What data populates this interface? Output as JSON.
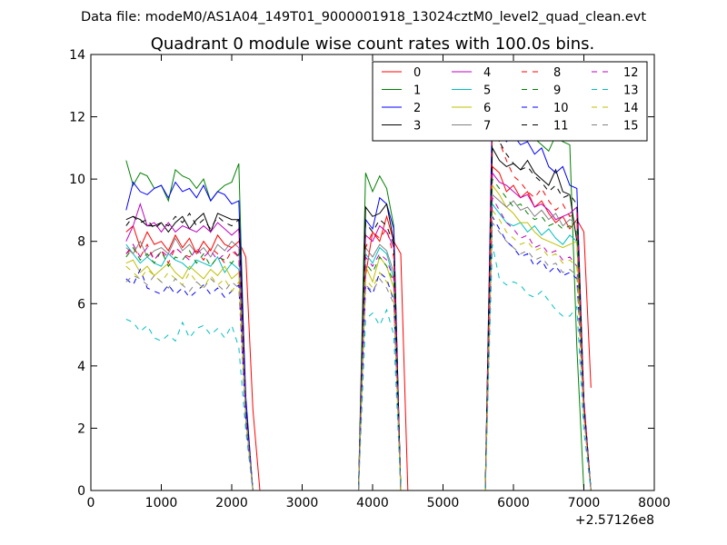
{
  "header": {
    "file_label": "Data file: modeM0/AS1A04_149T01_9000001918_13024cztM0_level2_quad_clean.evt"
  },
  "chart_data": {
    "type": "line",
    "title": "Quadrant 0 module wise count rates with 100.0s bins.",
    "xlabel": "",
    "ylabel": "",
    "x_offset_label": "+2.57126e8",
    "xlim": [
      0,
      8000
    ],
    "ylim": [
      0,
      14
    ],
    "xticks": [
      0,
      1000,
      2000,
      3000,
      4000,
      5000,
      6000,
      7000,
      8000
    ],
    "yticks": [
      0,
      2,
      4,
      6,
      8,
      10,
      12,
      14
    ],
    "grid": false,
    "legend": {
      "placement": "top-right",
      "columns": 4
    },
    "x": [
      500,
      600,
      700,
      800,
      900,
      1000,
      1100,
      1200,
      1300,
      1400,
      1500,
      1600,
      1700,
      1800,
      1900,
      2000,
      2100,
      2200,
      2300,
      2400,
      2500,
      2600,
      2700,
      2800,
      2900,
      3000,
      3100,
      3200,
      3300,
      3400,
      3500,
      3600,
      3700,
      3800,
      3900,
      4000,
      4100,
      4200,
      4300,
      4400,
      4500,
      4600,
      4700,
      4800,
      4900,
      5000,
      5100,
      5200,
      5300,
      5400,
      5500,
      5600,
      5700,
      5800,
      5900,
      6000,
      6100,
      6200,
      6300,
      6400,
      6500,
      6600,
      6700,
      6800,
      6900,
      7000,
      7100
    ],
    "series": [
      {
        "name": "0",
        "color": "#ff0000",
        "dash": "solid",
        "values": [
          8.3,
          8.5,
          7.8,
          8.3,
          7.9,
          8.0,
          7.7,
          8.2,
          7.8,
          8.1,
          7.6,
          8.0,
          7.7,
          8.2,
          7.9,
          7.8,
          8.0,
          7.5,
          2.6,
          0,
          0,
          0,
          0,
          0,
          0,
          0,
          0,
          0,
          0,
          0,
          0,
          0,
          0,
          0,
          6.9,
          8.3,
          8.0,
          8.8,
          8.0,
          7.6,
          0,
          0,
          0,
          0,
          0,
          0,
          0,
          0,
          0,
          0,
          0,
          0,
          10.4,
          10.2,
          9.6,
          9.8,
          9.4,
          9.6,
          9.1,
          9.3,
          8.9,
          8.6,
          8.8,
          8.4,
          8.7,
          8.3,
          3.3
        ]
      },
      {
        "name": "1",
        "color": "#008000",
        "dash": "solid",
        "values": [
          10.6,
          9.8,
          10.2,
          10.1,
          9.7,
          9.8,
          9.3,
          10.3,
          10.1,
          10.0,
          9.7,
          10.0,
          9.3,
          9.6,
          9.8,
          9.9,
          10.5,
          2.4,
          0,
          0,
          0,
          0,
          0,
          0,
          0,
          0,
          0,
          0,
          0,
          0,
          0,
          0,
          0,
          0,
          10.2,
          9.6,
          10.1,
          9.7,
          8.5,
          0,
          0,
          0,
          0,
          0,
          0,
          0,
          0,
          0,
          0,
          0,
          0,
          0,
          11.6,
          11.9,
          11.7,
          11.6,
          11.5,
          11.5,
          11.3,
          11.1,
          10.9,
          11.4,
          11.2,
          11.1,
          4.6,
          0,
          0
        ]
      },
      {
        "name": "2",
        "color": "#0000ff",
        "dash": "solid",
        "values": [
          9.0,
          9.9,
          9.6,
          9.5,
          9.7,
          9.8,
          9.4,
          9.9,
          9.6,
          9.7,
          9.4,
          9.8,
          9.3,
          9.6,
          9.5,
          9.2,
          9.3,
          3.0,
          0,
          0,
          0,
          0,
          0,
          0,
          0,
          0,
          0,
          0,
          0,
          0,
          0,
          0,
          0,
          0,
          8.7,
          8.4,
          9.4,
          9.2,
          8.4,
          0,
          0,
          0,
          0,
          0,
          0,
          0,
          0,
          0,
          0,
          0,
          0,
          0,
          12.4,
          11.6,
          11.2,
          11.4,
          11.1,
          11.2,
          10.8,
          11.0,
          10.4,
          10.2,
          10.4,
          9.8,
          9.7,
          2.9,
          0
        ]
      },
      {
        "name": "3",
        "color": "#000000",
        "dash": "solid",
        "values": [
          8.7,
          8.8,
          8.7,
          8.5,
          8.5,
          8.6,
          8.3,
          8.6,
          8.8,
          8.4,
          8.7,
          8.9,
          8.3,
          8.9,
          8.8,
          8.7,
          8.7,
          2.6,
          0,
          0,
          0,
          0,
          0,
          0,
          0,
          0,
          0,
          0,
          0,
          0,
          0,
          0,
          0,
          0,
          9.1,
          8.8,
          8.9,
          9.2,
          8.0,
          0,
          0,
          0,
          0,
          0,
          0,
          0,
          0,
          0,
          0,
          0,
          0,
          0,
          11.0,
          10.6,
          10.4,
          10.5,
          10.3,
          10.6,
          10.2,
          10.0,
          9.8,
          10.3,
          9.6,
          9.5,
          8.0,
          2.8,
          0
        ]
      },
      {
        "name": "4",
        "color": "#bf00bf",
        "dash": "solid",
        "values": [
          8.0,
          8.5,
          9.2,
          8.5,
          8.6,
          8.3,
          8.6,
          8.3,
          8.5,
          8.4,
          8.3,
          8.5,
          8.3,
          8.6,
          8.4,
          8.2,
          8.4,
          2.5,
          0,
          0,
          0,
          0,
          0,
          0,
          0,
          0,
          0,
          0,
          0,
          0,
          0,
          0,
          0,
          0,
          8.2,
          8.0,
          8.5,
          8.3,
          7.8,
          0,
          0,
          0,
          0,
          0,
          0,
          0,
          0,
          0,
          0,
          0,
          0,
          0,
          10.2,
          9.9,
          9.8,
          9.6,
          9.4,
          9.5,
          9.1,
          9.2,
          9.0,
          8.7,
          8.8,
          8.9,
          9.1,
          2.8,
          0
        ]
      },
      {
        "name": "5",
        "color": "#00bfbf",
        "dash": "solid",
        "values": [
          7.9,
          7.6,
          7.3,
          7.5,
          7.3,
          7.2,
          7.6,
          7.4,
          7.3,
          7.1,
          7.4,
          7.3,
          7.2,
          7.5,
          7.0,
          7.3,
          7.1,
          2.4,
          0,
          0,
          0,
          0,
          0,
          0,
          0,
          0,
          0,
          0,
          0,
          0,
          0,
          0,
          0,
          0,
          7.6,
          7.3,
          7.8,
          7.6,
          6.8,
          0,
          0,
          0,
          0,
          0,
          0,
          0,
          0,
          0,
          0,
          0,
          0,
          0,
          9.2,
          8.9,
          8.6,
          8.5,
          8.6,
          8.3,
          8.5,
          8.2,
          8.4,
          8.1,
          7.9,
          8.2,
          8.0,
          2.6,
          0
        ]
      },
      {
        "name": "6",
        "color": "#bfbf00",
        "dash": "solid",
        "values": [
          7.3,
          7.4,
          7.0,
          7.2,
          6.9,
          7.1,
          7.3,
          7.0,
          6.8,
          7.2,
          7.0,
          6.8,
          7.1,
          6.9,
          7.2,
          6.8,
          7.0,
          2.3,
          0,
          0,
          0,
          0,
          0,
          0,
          0,
          0,
          0,
          0,
          0,
          0,
          0,
          0,
          0,
          0,
          7.2,
          6.7,
          7.5,
          7.2,
          6.5,
          0,
          0,
          0,
          0,
          0,
          0,
          0,
          0,
          0,
          0,
          0,
          0,
          0,
          9.8,
          9.5,
          9.1,
          8.9,
          8.6,
          8.6,
          8.3,
          8.1,
          8.0,
          7.9,
          7.8,
          7.9,
          8.0,
          2.5,
          0
        ]
      },
      {
        "name": "7",
        "color": "#808080",
        "dash": "solid",
        "values": [
          7.8,
          7.6,
          8.0,
          7.5,
          7.7,
          7.8,
          7.6,
          8.1,
          7.7,
          7.9,
          7.6,
          7.8,
          7.5,
          7.9,
          7.7,
          8.0,
          7.8,
          2.5,
          0,
          0,
          0,
          0,
          0,
          0,
          0,
          0,
          0,
          0,
          0,
          0,
          0,
          0,
          0,
          0,
          7.8,
          7.5,
          7.9,
          7.7,
          7.0,
          0,
          0,
          0,
          0,
          0,
          0,
          0,
          0,
          0,
          0,
          0,
          0,
          0,
          9.5,
          9.3,
          9.1,
          9.3,
          9.0,
          9.1,
          8.8,
          9.0,
          8.7,
          8.9,
          8.5,
          8.7,
          8.6,
          2.6,
          0
        ]
      },
      {
        "name": "8",
        "color": "#ff0000",
        "dash": "dashed",
        "values": [
          7.6,
          7.8,
          7.5,
          7.9,
          7.4,
          7.7,
          7.3,
          7.8,
          7.6,
          7.5,
          7.7,
          7.4,
          7.8,
          7.6,
          7.3,
          7.7,
          7.5,
          2.4,
          0,
          0,
          0,
          0,
          0,
          0,
          0,
          0,
          0,
          0,
          0,
          0,
          0,
          0,
          0,
          0,
          7.8,
          8.3,
          8.1,
          8.4,
          7.5,
          0,
          0,
          0,
          0,
          0,
          0,
          0,
          0,
          0,
          0,
          0,
          0,
          0,
          11.7,
          11.2,
          10.6,
          10.1,
          9.9,
          9.6,
          9.4,
          9.7,
          9.3,
          9.0,
          9.2,
          8.8,
          8.9,
          2.8,
          0
        ]
      },
      {
        "name": "9",
        "color": "#008000",
        "dash": "dashed",
        "values": [
          7.5,
          7.8,
          7.4,
          7.6,
          7.3,
          7.7,
          7.2,
          7.5,
          7.4,
          7.7,
          7.3,
          7.6,
          7.2,
          7.5,
          7.4,
          7.3,
          7.6,
          2.4,
          0,
          0,
          0,
          0,
          0,
          0,
          0,
          0,
          0,
          0,
          0,
          0,
          0,
          0,
          0,
          0,
          7.3,
          7.0,
          7.5,
          7.2,
          6.7,
          0,
          0,
          0,
          0,
          0,
          0,
          0,
          0,
          0,
          0,
          0,
          0,
          0,
          10.0,
          9.7,
          9.4,
          9.1,
          9.2,
          8.9,
          8.7,
          8.8,
          8.5,
          8.6,
          8.4,
          8.5,
          8.3,
          2.6,
          0
        ]
      },
      {
        "name": "10",
        "color": "#0000ff",
        "dash": "dashed",
        "values": [
          6.8,
          6.6,
          7.1,
          6.5,
          6.4,
          6.3,
          6.6,
          6.3,
          6.5,
          6.2,
          6.4,
          6.6,
          6.3,
          6.5,
          6.2,
          6.4,
          6.6,
          2.2,
          0,
          0,
          0,
          0,
          0,
          0,
          0,
          0,
          0,
          0,
          0,
          0,
          0,
          0,
          0,
          0,
          6.6,
          6.3,
          7.0,
          6.8,
          6.1,
          0,
          0,
          0,
          0,
          0,
          0,
          0,
          0,
          0,
          0,
          0,
          0,
          0,
          8.8,
          8.4,
          8.0,
          7.8,
          7.5,
          7.6,
          7.2,
          7.4,
          7.0,
          7.2,
          6.9,
          7.0,
          6.8,
          2.4,
          0
        ]
      },
      {
        "name": "11",
        "color": "#000000",
        "dash": "dashed",
        "values": [
          8.5,
          8.8,
          8.6,
          8.7,
          8.4,
          8.6,
          8.5,
          8.8,
          8.6,
          8.9,
          8.5,
          8.7,
          8.4,
          8.8,
          8.6,
          8.5,
          8.7,
          2.6,
          0,
          0,
          0,
          0,
          0,
          0,
          0,
          0,
          0,
          0,
          0,
          0,
          0,
          0,
          0,
          0,
          8.6,
          8.3,
          8.7,
          8.5,
          7.9,
          0,
          0,
          0,
          0,
          0,
          0,
          0,
          0,
          0,
          0,
          0,
          0,
          0,
          11.5,
          11.2,
          10.8,
          10.5,
          10.3,
          10.4,
          10.1,
          9.9,
          9.6,
          9.8,
          9.4,
          9.5,
          9.2,
          2.8,
          0
        ]
      },
      {
        "name": "12",
        "color": "#bf00bf",
        "dash": "dashed",
        "values": [
          7.6,
          7.9,
          7.5,
          7.8,
          7.4,
          7.7,
          7.5,
          7.8,
          7.6,
          7.4,
          7.8,
          7.5,
          7.7,
          7.4,
          7.6,
          7.8,
          7.5,
          2.4,
          0,
          0,
          0,
          0,
          0,
          0,
          0,
          0,
          0,
          0,
          0,
          0,
          0,
          0,
          0,
          0,
          7.5,
          7.2,
          7.6,
          7.4,
          6.8,
          0,
          0,
          0,
          0,
          0,
          0,
          0,
          0,
          0,
          0,
          0,
          0,
          0,
          9.4,
          9.0,
          8.6,
          8.4,
          8.1,
          8.2,
          7.8,
          7.9,
          7.6,
          7.7,
          7.4,
          7.5,
          7.2,
          2.5,
          0
        ]
      },
      {
        "name": "13",
        "color": "#00bfbf",
        "dash": "dashed",
        "values": [
          5.5,
          5.4,
          5.1,
          5.3,
          4.9,
          4.8,
          5.0,
          4.8,
          5.4,
          4.9,
          5.2,
          5.3,
          5.0,
          5.2,
          4.9,
          5.3,
          4.6,
          1.9,
          0,
          0,
          0,
          0,
          0,
          0,
          0,
          0,
          0,
          0,
          0,
          0,
          0,
          0,
          0,
          0,
          5.5,
          5.7,
          5.3,
          5.8,
          5.0,
          0,
          0,
          0,
          0,
          0,
          0,
          0,
          0,
          0,
          0,
          0,
          0,
          0,
          7.9,
          6.8,
          6.6,
          6.7,
          6.6,
          6.3,
          6.2,
          6.4,
          6.1,
          5.8,
          5.6,
          5.6,
          5.9,
          1.9,
          0
        ]
      },
      {
        "name": "14",
        "color": "#bfbf00",
        "dash": "dashed",
        "values": [
          7.2,
          7.0,
          6.8,
          7.1,
          6.9,
          6.7,
          7.0,
          6.8,
          6.6,
          7.0,
          6.7,
          6.5,
          6.9,
          6.6,
          6.8,
          6.4,
          6.7,
          2.2,
          0,
          0,
          0,
          0,
          0,
          0,
          0,
          0,
          0,
          0,
          0,
          0,
          0,
          0,
          0,
          0,
          6.8,
          6.5,
          7.0,
          6.7,
          6.2,
          0,
          0,
          0,
          0,
          0,
          0,
          0,
          0,
          0,
          0,
          0,
          0,
          0,
          9.0,
          8.7,
          8.3,
          8.1,
          7.9,
          8.0,
          7.7,
          7.8,
          7.5,
          7.6,
          7.3,
          7.4,
          7.2,
          2.4,
          0
        ]
      },
      {
        "name": "15",
        "color": "#808080",
        "dash": "dashed",
        "values": [
          6.7,
          6.9,
          6.8,
          6.6,
          6.9,
          6.7,
          6.5,
          6.8,
          6.6,
          6.4,
          6.7,
          6.5,
          6.8,
          6.6,
          6.4,
          6.7,
          6.5,
          2.2,
          0,
          0,
          0,
          0,
          0,
          0,
          0,
          0,
          0,
          0,
          0,
          0,
          0,
          0,
          0,
          0,
          6.6,
          6.4,
          6.8,
          6.5,
          6.0,
          0,
          0,
          0,
          0,
          0,
          0,
          0,
          0,
          0,
          0,
          0,
          0,
          0,
          8.6,
          8.3,
          8.0,
          7.8,
          7.6,
          7.7,
          7.4,
          7.5,
          7.2,
          7.3,
          7.0,
          7.1,
          6.9,
          2.4,
          0
        ]
      }
    ]
  }
}
